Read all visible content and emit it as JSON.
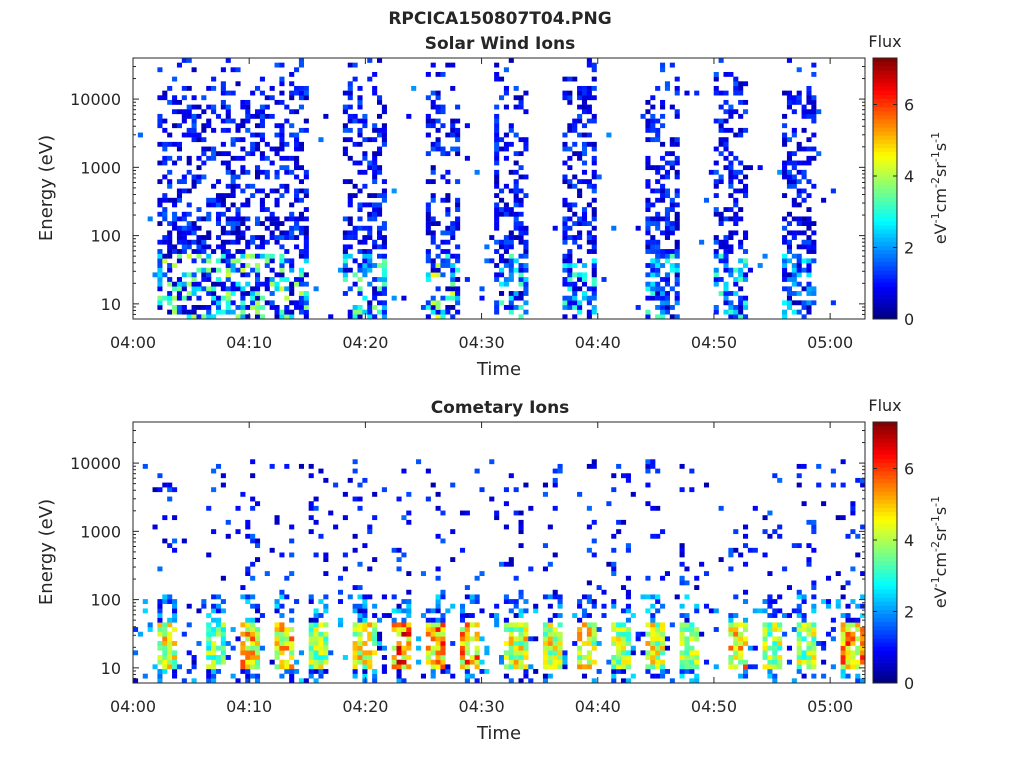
{
  "figure_title": "RPCICA150807T04.PNG",
  "chart_data": [
    {
      "type": "heatmap",
      "title": "Solar Wind Ions",
      "xlabel": "Time",
      "ylabel": "Energy (eV)",
      "yscale": "log",
      "ylim": [
        6,
        40000
      ],
      "xlim": [
        "04:00",
        "05:03"
      ],
      "x_ticks": [
        "04:00",
        "04:10",
        "04:20",
        "04:30",
        "04:40",
        "04:50",
        "05:00"
      ],
      "y_ticks": [
        "10",
        "100",
        "1000",
        "10000"
      ],
      "y_tick_values": [
        10,
        100,
        1000,
        10000
      ],
      "colorbar": {
        "title": "Flux",
        "label": "eV-1cm-2sr-1s-1",
        "colormap": "jet",
        "range": [
          0,
          7.3
        ],
        "ticks": [
          "0",
          "2",
          "4",
          "6"
        ],
        "tick_values": [
          0,
          2,
          4,
          6
        ]
      },
      "activity_bands": [
        {
          "start": "04:02",
          "end": "04:15",
          "max_flux": 4.5
        },
        {
          "start": "04:18",
          "end": "04:22",
          "max_flux": 4.0
        },
        {
          "start": "04:25",
          "end": "04:28",
          "max_flux": 5.0
        },
        {
          "start": "04:31",
          "end": "04:34",
          "max_flux": 3.5
        },
        {
          "start": "04:37",
          "end": "04:40",
          "max_flux": 3.5
        },
        {
          "start": "04:44",
          "end": "04:47",
          "max_flux": 3.5
        },
        {
          "start": "04:50",
          "end": "04:53",
          "max_flux": 3.5
        },
        {
          "start": "04:56",
          "end": "04:59",
          "max_flux": 3.0
        }
      ]
    },
    {
      "type": "heatmap",
      "title": "Cometary Ions",
      "xlabel": "Time",
      "ylabel": "Energy (eV)",
      "yscale": "log",
      "ylim": [
        6,
        40000
      ],
      "xlim": [
        "04:00",
        "05:03"
      ],
      "x_ticks": [
        "04:00",
        "04:10",
        "04:20",
        "04:30",
        "04:40",
        "04:50",
        "05:00"
      ],
      "y_ticks": [
        "10",
        "100",
        "1000",
        "10000"
      ],
      "y_tick_values": [
        10,
        100,
        1000,
        10000
      ],
      "colorbar": {
        "title": "Flux",
        "label": "eV-1cm-2sr-1s-1",
        "colormap": "jet",
        "range": [
          0,
          7.3
        ],
        "ticks": [
          "0",
          "2",
          "4",
          "6"
        ],
        "tick_values": [
          0,
          2,
          4,
          6
        ]
      },
      "bursts": [
        {
          "time": "04:03",
          "max_flux": 5.5
        },
        {
          "time": "04:07",
          "max_flux": 4.5
        },
        {
          "time": "04:10",
          "max_flux": 6.0
        },
        {
          "time": "04:13",
          "max_flux": 6.0
        },
        {
          "time": "04:16",
          "max_flux": 5.0
        },
        {
          "time": "04:20",
          "max_flux": 5.5
        },
        {
          "time": "04:23",
          "max_flux": 7.0
        },
        {
          "time": "04:26",
          "max_flux": 6.5
        },
        {
          "time": "04:29",
          "max_flux": 6.5
        },
        {
          "time": "04:33",
          "max_flux": 5.5
        },
        {
          "time": "04:36",
          "max_flux": 5.5
        },
        {
          "time": "04:39",
          "max_flux": 5.5
        },
        {
          "time": "04:42",
          "max_flux": 5.0
        },
        {
          "time": "04:45",
          "max_flux": 5.5
        },
        {
          "time": "04:48",
          "max_flux": 5.0
        },
        {
          "time": "04:52",
          "max_flux": 6.0
        },
        {
          "time": "04:55",
          "max_flux": 5.0
        },
        {
          "time": "04:58",
          "max_flux": 5.0
        },
        {
          "time": "05:02",
          "max_flux": 6.5
        }
      ]
    }
  ]
}
